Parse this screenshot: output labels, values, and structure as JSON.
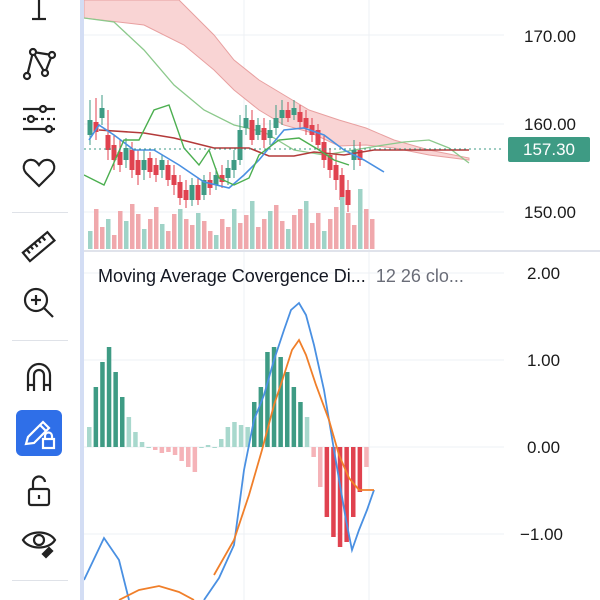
{
  "toolbar": {
    "tools": [
      {
        "name": "cursor-line-icon"
      },
      {
        "name": "pattern-icon"
      },
      {
        "name": "indicator-settings-icon"
      },
      {
        "name": "favorites-heart-icon"
      },
      {
        "name": "ruler-icon"
      },
      {
        "name": "zoom-in-icon"
      },
      {
        "name": "magnet-icon"
      },
      {
        "name": "pencil-lock-icon",
        "active": true
      },
      {
        "name": "unlock-icon"
      },
      {
        "name": "eye-icon"
      }
    ],
    "accent": "#2f6fe8"
  },
  "price_pane": {
    "axis_labels": [
      "170.00",
      "160.00",
      "150.00"
    ],
    "current_price": "157.30",
    "current_price_color": "#3e9b84",
    "up_color": "#3e9b84",
    "down_color": "#e0424f",
    "cloud_color": "#f7c9c9"
  },
  "macd_pane": {
    "title": "Moving Average Covergence Di...",
    "params": "12 26 clo...",
    "axis_labels": [
      "2.00",
      "1.00",
      "0.00",
      "−1.00"
    ],
    "macd_line_color": "#4a90e2",
    "signal_line_color": "#f07f2a"
  }
}
